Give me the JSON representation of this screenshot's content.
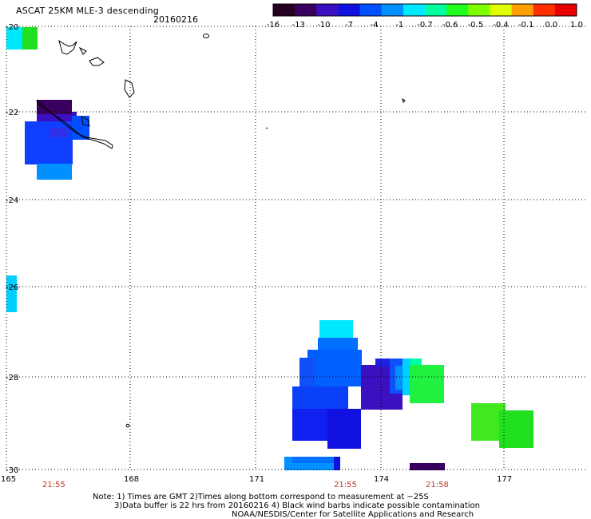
{
  "header": {
    "title": "ASCAT 25KM MLE-3 descending",
    "date": "20160216"
  },
  "colorbar": {
    "labels": [
      "-16",
      "-13",
      "-10",
      "-7",
      "-4",
      "-1",
      "-0.7",
      "-0.6",
      "-0.5",
      "-0.4",
      "-0.1",
      "0.0",
      "1.0"
    ],
    "colors": [
      "#250020",
      "#3a0060",
      "#3a10c0",
      "#1010e0",
      "#0050ff",
      "#0090ff",
      "#00e8ff",
      "#00ffa0",
      "#20ff20",
      "#80ff00",
      "#e0ff00",
      "#ffa000",
      "#ff3000",
      "#e80000"
    ]
  },
  "map": {
    "lat_labels": [
      "-20",
      "-22",
      "-24",
      "-26",
      "-28",
      "-30"
    ],
    "lon_labels": [
      "165",
      "168",
      "171",
      "174",
      "177"
    ],
    "time_labels": [
      "21:55",
      "21:55",
      "21:58"
    ]
  },
  "notes": {
    "line1": "Note: 1) Times are GMT 2)Times along bottom correspond to measurement at −25S",
    "line2": "3)Data buffer is 22 hrs from 20160216 4) Black wind barbs indicate possible contamination",
    "line3": "NOAA/NESDIS/Center for Satellite Applications and Research"
  }
}
